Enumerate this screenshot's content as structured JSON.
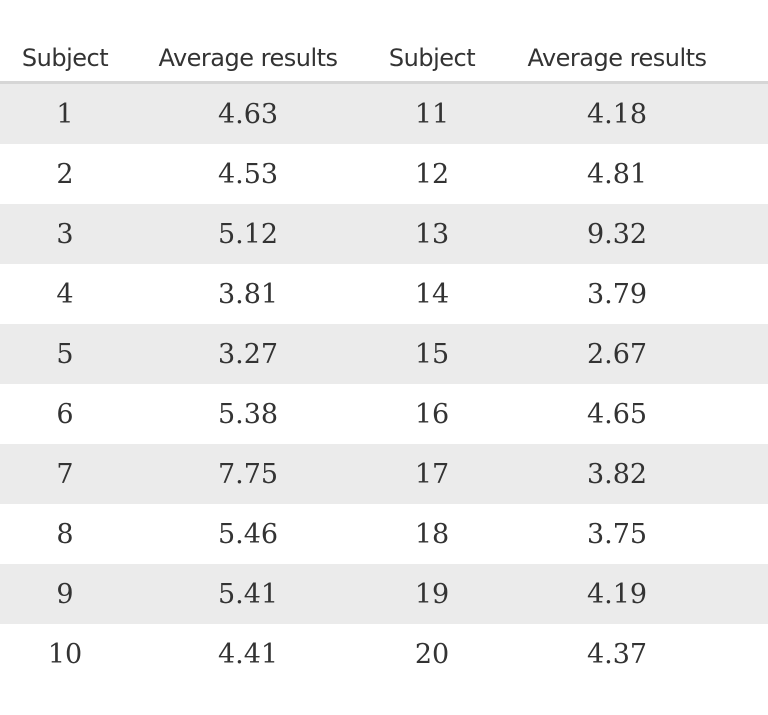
{
  "table": {
    "header": [
      "Subject",
      "Average results",
      "Subject",
      "Average results"
    ],
    "rows": [
      [
        1,
        4.63,
        11,
        4.18
      ],
      [
        2,
        4.53,
        12,
        4.81
      ],
      [
        3,
        5.12,
        13,
        9.32
      ],
      [
        4,
        3.81,
        14,
        3.79
      ],
      [
        5,
        3.27,
        15,
        2.67
      ],
      [
        6,
        5.38,
        16,
        4.65
      ],
      [
        7,
        7.75,
        17,
        3.82
      ],
      [
        8,
        5.46,
        18,
        3.75
      ],
      [
        9,
        5.41,
        19,
        4.19
      ],
      [
        10,
        4.41,
        20,
        4.37
      ]
    ]
  }
}
